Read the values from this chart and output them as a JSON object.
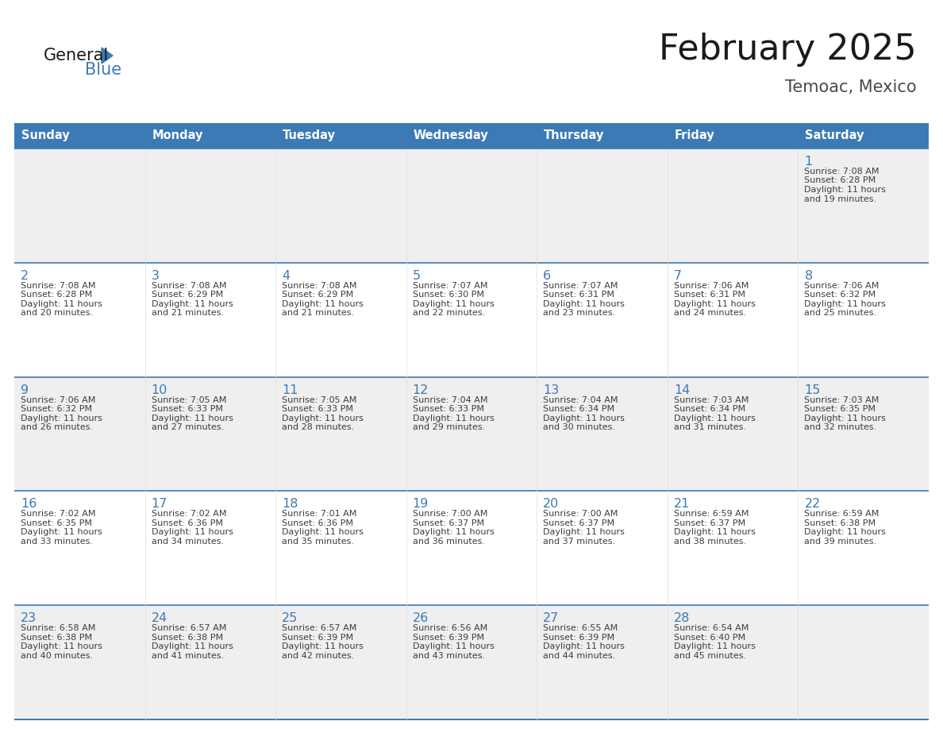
{
  "title": "February 2025",
  "subtitle": "Temoac, Mexico",
  "header_bg": "#3C7AB5",
  "header_text": "#FFFFFF",
  "days_of_week": [
    "Sunday",
    "Monday",
    "Tuesday",
    "Wednesday",
    "Thursday",
    "Friday",
    "Saturday"
  ],
  "row_bg": [
    "#EFEFEF",
    "#FFFFFF",
    "#EFEFEF",
    "#FFFFFF",
    "#EFEFEF"
  ],
  "day_number_color": "#3C7AB5",
  "info_text_color": "#3D3D3D",
  "border_color": "#3C7AB5",
  "col_border_color": "#DDDDDD",
  "logo_general_color": "#1A1A1A",
  "logo_blue_color": "#3C7AB5",
  "title_color": "#1A1A1A",
  "subtitle_color": "#4A4A4A",
  "calendar": [
    [
      null,
      null,
      null,
      null,
      null,
      null,
      {
        "day": 1,
        "sunrise": "7:08 AM",
        "sunset": "6:28 PM",
        "daylight": "11 hours and 19 minutes."
      }
    ],
    [
      {
        "day": 2,
        "sunrise": "7:08 AM",
        "sunset": "6:28 PM",
        "daylight": "11 hours and 20 minutes."
      },
      {
        "day": 3,
        "sunrise": "7:08 AM",
        "sunset": "6:29 PM",
        "daylight": "11 hours and 21 minutes."
      },
      {
        "day": 4,
        "sunrise": "7:08 AM",
        "sunset": "6:29 PM",
        "daylight": "11 hours and 21 minutes."
      },
      {
        "day": 5,
        "sunrise": "7:07 AM",
        "sunset": "6:30 PM",
        "daylight": "11 hours and 22 minutes."
      },
      {
        "day": 6,
        "sunrise": "7:07 AM",
        "sunset": "6:31 PM",
        "daylight": "11 hours and 23 minutes."
      },
      {
        "day": 7,
        "sunrise": "7:06 AM",
        "sunset": "6:31 PM",
        "daylight": "11 hours and 24 minutes."
      },
      {
        "day": 8,
        "sunrise": "7:06 AM",
        "sunset": "6:32 PM",
        "daylight": "11 hours and 25 minutes."
      }
    ],
    [
      {
        "day": 9,
        "sunrise": "7:06 AM",
        "sunset": "6:32 PM",
        "daylight": "11 hours and 26 minutes."
      },
      {
        "day": 10,
        "sunrise": "7:05 AM",
        "sunset": "6:33 PM",
        "daylight": "11 hours and 27 minutes."
      },
      {
        "day": 11,
        "sunrise": "7:05 AM",
        "sunset": "6:33 PM",
        "daylight": "11 hours and 28 minutes."
      },
      {
        "day": 12,
        "sunrise": "7:04 AM",
        "sunset": "6:33 PM",
        "daylight": "11 hours and 29 minutes."
      },
      {
        "day": 13,
        "sunrise": "7:04 AM",
        "sunset": "6:34 PM",
        "daylight": "11 hours and 30 minutes."
      },
      {
        "day": 14,
        "sunrise": "7:03 AM",
        "sunset": "6:34 PM",
        "daylight": "11 hours and 31 minutes."
      },
      {
        "day": 15,
        "sunrise": "7:03 AM",
        "sunset": "6:35 PM",
        "daylight": "11 hours and 32 minutes."
      }
    ],
    [
      {
        "day": 16,
        "sunrise": "7:02 AM",
        "sunset": "6:35 PM",
        "daylight": "11 hours and 33 minutes."
      },
      {
        "day": 17,
        "sunrise": "7:02 AM",
        "sunset": "6:36 PM",
        "daylight": "11 hours and 34 minutes."
      },
      {
        "day": 18,
        "sunrise": "7:01 AM",
        "sunset": "6:36 PM",
        "daylight": "11 hours and 35 minutes."
      },
      {
        "day": 19,
        "sunrise": "7:00 AM",
        "sunset": "6:37 PM",
        "daylight": "11 hours and 36 minutes."
      },
      {
        "day": 20,
        "sunrise": "7:00 AM",
        "sunset": "6:37 PM",
        "daylight": "11 hours and 37 minutes."
      },
      {
        "day": 21,
        "sunrise": "6:59 AM",
        "sunset": "6:37 PM",
        "daylight": "11 hours and 38 minutes."
      },
      {
        "day": 22,
        "sunrise": "6:59 AM",
        "sunset": "6:38 PM",
        "daylight": "11 hours and 39 minutes."
      }
    ],
    [
      {
        "day": 23,
        "sunrise": "6:58 AM",
        "sunset": "6:38 PM",
        "daylight": "11 hours and 40 minutes."
      },
      {
        "day": 24,
        "sunrise": "6:57 AM",
        "sunset": "6:38 PM",
        "daylight": "11 hours and 41 minutes."
      },
      {
        "day": 25,
        "sunrise": "6:57 AM",
        "sunset": "6:39 PM",
        "daylight": "11 hours and 42 minutes."
      },
      {
        "day": 26,
        "sunrise": "6:56 AM",
        "sunset": "6:39 PM",
        "daylight": "11 hours and 43 minutes."
      },
      {
        "day": 27,
        "sunrise": "6:55 AM",
        "sunset": "6:39 PM",
        "daylight": "11 hours and 44 minutes."
      },
      {
        "day": 28,
        "sunrise": "6:54 AM",
        "sunset": "6:40 PM",
        "daylight": "11 hours and 45 minutes."
      },
      null
    ]
  ]
}
